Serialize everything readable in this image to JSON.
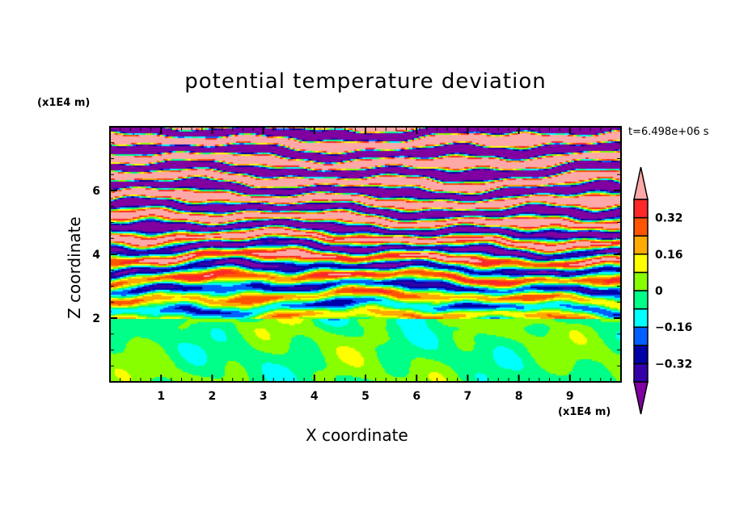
{
  "chart_data": {
    "type": "heatmap",
    "title": "potential temperature deviation",
    "xlabel": "X coordinate",
    "ylabel": "Z coordinate",
    "x_unit_label": "(x1E4 m)",
    "y_unit_label": "(x1E4 m)",
    "annotation": "t=6.498e+06 s",
    "xlim": [
      0,
      10
    ],
    "ylim": [
      0,
      8
    ],
    "x_ticks": [
      "1",
      "2",
      "3",
      "4",
      "5",
      "6",
      "7",
      "8",
      "9"
    ],
    "y_ticks": [
      "2",
      "4",
      "6"
    ],
    "colorbar": {
      "levels": [
        -0.4,
        -0.32,
        -0.24,
        -0.16,
        -0.08,
        0,
        0.08,
        0.16,
        0.24,
        0.32,
        0.4
      ],
      "tick_labels": [
        "0.32",
        "0.16",
        "0",
        "−0.16",
        "−0.32"
      ],
      "tick_values": [
        0.32,
        0.16,
        0,
        -0.16,
        -0.32
      ],
      "colors": [
        "#3300A8",
        "#0000A8",
        "#0060FF",
        "#00FFFF",
        "#00FF88",
        "#88FF00",
        "#FFFF00",
        "#FFAA00",
        "#FF5500",
        "#FF2828"
      ],
      "under_color": "#8000A0",
      "over_color": "#FFA8A8",
      "extend": "both"
    },
    "field_description_regions": [
      {
        "z_range": [
          0,
          2
        ],
        "value_range": [
          -0.08,
          0.16
        ]
      },
      {
        "z_range": [
          2,
          8
        ],
        "value_range": [
          -0.5,
          0.5
        ]
      }
    ]
  }
}
